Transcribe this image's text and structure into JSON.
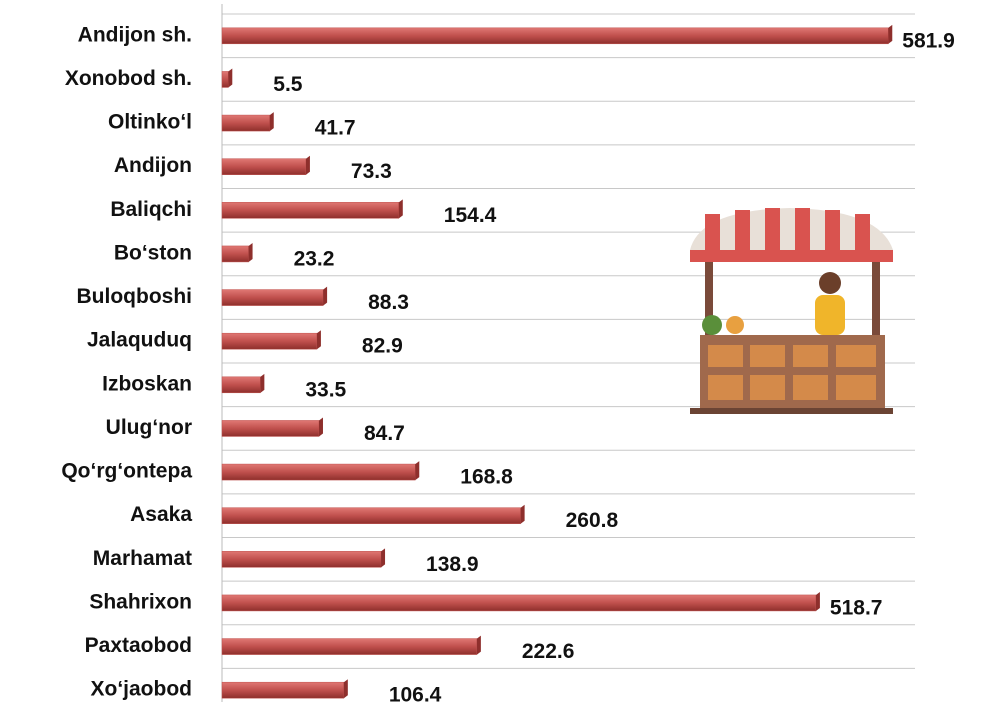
{
  "chart_data": {
    "type": "bar",
    "orientation": "horizontal",
    "categories": [
      "Andijon sh.",
      "Xonobod sh.",
      "Oltinko‘l",
      "Andijon",
      "Baliqchi",
      "Bo‘ston",
      "Buloqboshi",
      "Jalaquduq",
      "Izboskan",
      "Ulug‘nor",
      "Qo‘rg‘ontepa",
      "Asaka",
      "Marhamat",
      "Shahrixon",
      "Paxtaobod",
      "Xo‘jaobod"
    ],
    "values": [
      581.9,
      5.5,
      41.7,
      73.3,
      154.4,
      23.2,
      88.3,
      82.9,
      33.5,
      84.7,
      168.8,
      260.8,
      138.9,
      518.7,
      222.6,
      106.4
    ],
    "color": "#c0504d",
    "xlim": [
      0,
      600
    ]
  }
}
